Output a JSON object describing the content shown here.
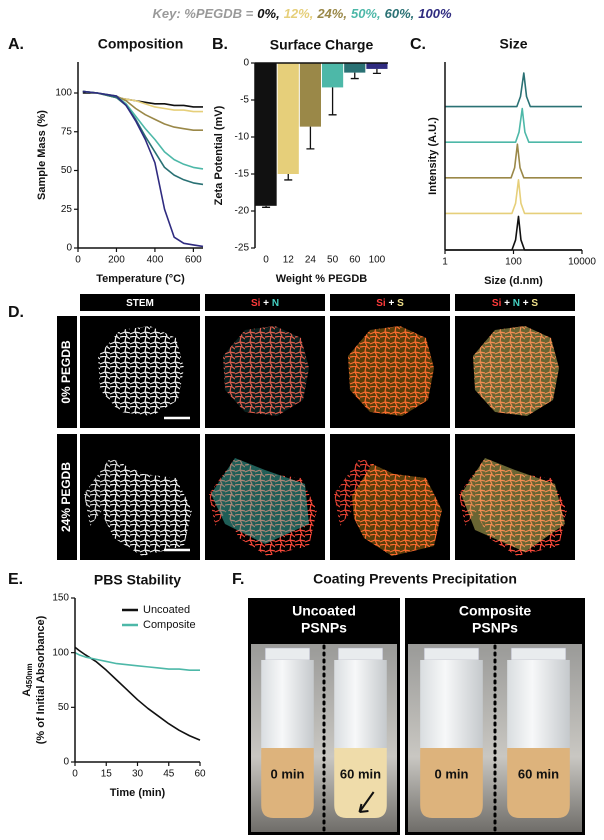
{
  "key": {
    "label": "Key: %PEGDB =",
    "entries": [
      {
        "text": "0%,",
        "color": "#111111"
      },
      {
        "text": "12%,",
        "color": "#e6cf7a"
      },
      {
        "text": "24%,",
        "color": "#9a8848"
      },
      {
        "text": "50%,",
        "color": "#4db8a8"
      },
      {
        "text": "60%,",
        "color": "#2a7174"
      },
      {
        "text": "100%",
        "color": "#2f2b80"
      }
    ]
  },
  "panel_labels": [
    "A.",
    "B.",
    "C.",
    "D.",
    "E.",
    "F."
  ],
  "chart_data": [
    {
      "type": "line",
      "title": "Composition",
      "xlabel": "Temperature (°C)",
      "ylabel": "Sample Mass (%)",
      "xlim": [
        0,
        650
      ],
      "xticks": [
        0,
        200,
        400,
        600
      ],
      "ylim": [
        0,
        120
      ],
      "yticks": [
        0,
        25,
        50,
        75,
        100
      ],
      "x": [
        25,
        100,
        200,
        250,
        300,
        350,
        400,
        450,
        500,
        550,
        600,
        650
      ],
      "series": [
        {
          "color": "#111111",
          "values": [
            100,
            100,
            97,
            96,
            95,
            94,
            93,
            93,
            92,
            92,
            91,
            91
          ]
        },
        {
          "color": "#e6cf7a",
          "values": [
            101,
            100,
            97,
            96,
            95,
            93,
            91,
            90,
            89,
            89,
            88,
            88
          ]
        },
        {
          "color": "#9a8848",
          "values": [
            101,
            100,
            98,
            95,
            90,
            86,
            83,
            80,
            78,
            77,
            76,
            76
          ]
        },
        {
          "color": "#4db8a8",
          "values": [
            101,
            100,
            98,
            93,
            85,
            77,
            70,
            62,
            57,
            54,
            52,
            51
          ]
        },
        {
          "color": "#2a7174",
          "values": [
            101,
            100,
            97,
            92,
            83,
            72,
            62,
            52,
            47,
            44,
            42,
            41
          ]
        },
        {
          "color": "#2f2b80",
          "values": [
            101,
            100,
            98,
            92,
            82,
            70,
            55,
            25,
            7,
            3,
            2,
            1
          ]
        }
      ]
    },
    {
      "type": "bar",
      "title": "Surface Charge",
      "xlabel": "Weight % PEGDB",
      "ylabel": "Zeta Potential (mV)",
      "categories": [
        "0",
        "12",
        "24",
        "50",
        "60",
        "100"
      ],
      "values": [
        -19.3,
        -15,
        -8.6,
        -3.3,
        -1.3,
        -0.8
      ],
      "errors": [
        0.2,
        0.8,
        3.0,
        3.7,
        0.8,
        0.6
      ],
      "colors": [
        "#111111",
        "#e6cf7a",
        "#9a8848",
        "#4db8a8",
        "#2a7174",
        "#2f2b80"
      ],
      "ylim": [
        -25,
        0
      ],
      "yticks": [
        -25,
        -20,
        -15,
        -10,
        -5,
        0
      ]
    },
    {
      "type": "stacked-peaks",
      "title": "Size",
      "xlabel": "Size (d.nm)",
      "ylabel": "Intensity (A.U.)",
      "xscale": "log",
      "xlim": [
        1,
        10000
      ],
      "xticks": [
        1,
        100,
        10000
      ],
      "series": [
        {
          "color": "#111111",
          "x": [
            1,
            90,
            115,
            140,
            165,
            210,
            10000
          ],
          "values": [
            0,
            0,
            0.3,
            1,
            0.3,
            0,
            0
          ]
        },
        {
          "color": "#e6cf7a",
          "x": [
            1,
            90,
            115,
            140,
            165,
            210,
            10000
          ],
          "values": [
            0,
            0,
            0.3,
            1,
            0.3,
            0,
            0
          ]
        },
        {
          "color": "#9a8848",
          "x": [
            1,
            85,
            108,
            130,
            155,
            200,
            10000
          ],
          "values": [
            0,
            0,
            0.3,
            1,
            0.3,
            0,
            0
          ]
        },
        {
          "color": "#4db8a8",
          "x": [
            1,
            115,
            145,
            180,
            215,
            280,
            10000
          ],
          "values": [
            0,
            0,
            0.3,
            1,
            0.3,
            0,
            0
          ]
        },
        {
          "color": "#2a7174",
          "x": [
            1,
            125,
            160,
            200,
            240,
            310,
            10000
          ],
          "values": [
            0,
            0,
            0.3,
            1,
            0.3,
            0,
            0
          ]
        }
      ]
    },
    {
      "type": "line",
      "title": "PBS Stability",
      "xlabel": "Time (min)",
      "ylabel": "A",
      "ylabel_sub": "450nm",
      "ylabel2": "(% of Initial Absorbance)",
      "legend": "upper right",
      "xlim": [
        0,
        60
      ],
      "xticks": [
        0,
        15,
        30,
        45,
        60
      ],
      "ylim": [
        0,
        150
      ],
      "yticks": [
        0,
        50,
        100,
        150
      ],
      "x": [
        0,
        2,
        5,
        10,
        15,
        20,
        25,
        30,
        35,
        40,
        45,
        50,
        55,
        60
      ],
      "series": [
        {
          "name": "Uncoated",
          "color": "#111111",
          "values": [
            105,
            102,
            98,
            92,
            84,
            75,
            66,
            57,
            49,
            42,
            35,
            29,
            24,
            20
          ]
        },
        {
          "name": "Composite",
          "color": "#4db8a8",
          "values": [
            100,
            98,
            96,
            94,
            92,
            90,
            89,
            88,
            87,
            86,
            85,
            85,
            84,
            84
          ]
        }
      ]
    }
  ],
  "panel_d": {
    "columns": [
      [
        {
          "text": "STEM",
          "color": "#ffffff"
        }
      ],
      [
        {
          "text": "Si",
          "color": "#ff3b3b"
        },
        {
          "text": " + ",
          "color": "#ffffff"
        },
        {
          "text": "N",
          "color": "#45d0c2"
        }
      ],
      [
        {
          "text": "Si",
          "color": "#ff3b3b"
        },
        {
          "text": " + ",
          "color": "#ffffff"
        },
        {
          "text": "S",
          "color": "#f0e08a"
        }
      ],
      [
        {
          "text": "Si",
          "color": "#ff3b3b"
        },
        {
          "text": " + ",
          "color": "#ffffff"
        },
        {
          "text": "N",
          "color": "#45d0c2"
        },
        {
          "text": " + ",
          "color": "#ffffff"
        },
        {
          "text": "S",
          "color": "#f0e08a"
        }
      ]
    ],
    "rows": [
      "0% PEGDB",
      "24% PEGDB"
    ]
  },
  "panel_f": {
    "title": "Coating Prevents Precipitation",
    "groups": [
      {
        "title": [
          "Uncoated",
          "PSNPs"
        ],
        "vials": [
          "0 min",
          "60 min"
        ]
      },
      {
        "title": [
          "Composite",
          "PSNPs"
        ],
        "vials": [
          "0 min",
          "60 min"
        ]
      }
    ]
  }
}
